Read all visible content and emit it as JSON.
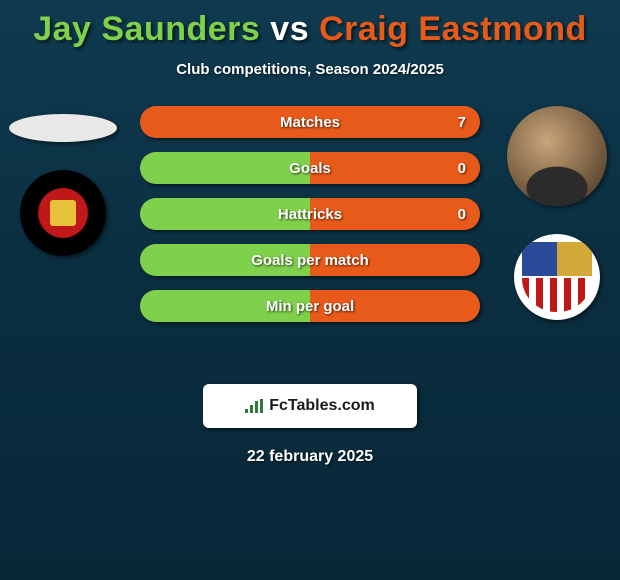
{
  "title": {
    "player1": "Jay Saunders",
    "vs": "vs",
    "player2": "Craig Eastmond",
    "color_p1": "#7fd04a",
    "color_vs": "#ffffff",
    "color_p2": "#e85a1a"
  },
  "subtitle": "Club competitions, Season 2024/2025",
  "stats": [
    {
      "label": "Matches",
      "value_right": "7",
      "left_color": "#7fd04a",
      "right_color": "#e85a1a",
      "left_pct": 0,
      "right_pct": 100
    },
    {
      "label": "Goals",
      "value_right": "0",
      "left_color": "#7fd04a",
      "right_color": "#e85a1a",
      "left_pct": 50,
      "right_pct": 50
    },
    {
      "label": "Hattricks",
      "value_right": "0",
      "left_color": "#7fd04a",
      "right_color": "#e85a1a",
      "left_pct": 50,
      "right_pct": 50
    },
    {
      "label": "Goals per match",
      "value_right": "",
      "left_color": "#7fd04a",
      "right_color": "#e85a1a",
      "left_pct": 50,
      "right_pct": 50
    },
    {
      "label": "Min per goal",
      "value_right": "",
      "left_color": "#7fd04a",
      "right_color": "#e85a1a",
      "left_pct": 50,
      "right_pct": 50
    }
  ],
  "branding": {
    "site": "FcTables.com"
  },
  "date": "22 february 2025"
}
